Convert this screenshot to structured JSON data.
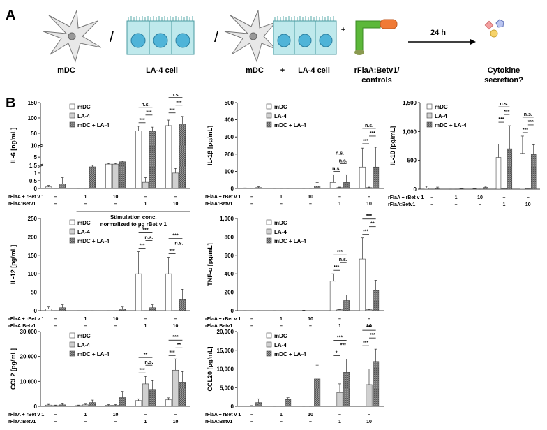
{
  "panel_a": {
    "label": "A",
    "cell_labels": [
      "mDC",
      "LA-4 cell",
      "mDC",
      "LA-4 cell"
    ],
    "slashes": [
      "/",
      "/"
    ],
    "plus": [
      "+",
      "+"
    ],
    "stimulus": [
      "rFlaA:Betv1/",
      "controls"
    ],
    "time": "24 h",
    "readout": [
      "Cytokine",
      "secretion?"
    ]
  },
  "panel_b": {
    "label": "B"
  },
  "chart_data": [
    {
      "type": "bar",
      "ylabel": "IL-6 [ng/mL]",
      "segments": [
        {
          "ylim": [
            0,
            1.5
          ],
          "yticks": [
            0,
            0.5,
            1,
            1.5
          ]
        },
        {
          "ylim": [
            1.5,
            10
          ],
          "yticks": [
            5,
            10
          ]
        },
        {
          "ylim": [
            10,
            150
          ],
          "yticks": [
            50,
            100,
            150
          ]
        }
      ],
      "series": [
        {
          "name": "mDC",
          "color": "#ffffff",
          "values": [
            0.1,
            0,
            2,
            58,
            75
          ],
          "errors": [
            0.1,
            0,
            0.3,
            15,
            18
          ]
        },
        {
          "name": "LA-4",
          "color": "#d0d0d0",
          "values": [
            0,
            0,
            2,
            0.4,
            1
          ],
          "errors": [
            0,
            0,
            0.3,
            0.3,
            0.3
          ]
        },
        {
          "name": "mDC + LA-4",
          "color": "#9a9a9a",
          "pattern": "crosshatch",
          "values": [
            0.3,
            1.4,
            3,
            58,
            80
          ],
          "errors": [
            0.4,
            0.1,
            0.3,
            12,
            25
          ]
        }
      ],
      "significance": [
        [],
        [],
        [],
        [
          "***",
          "***",
          "n.s."
        ],
        [
          "***",
          "***",
          "n.s."
        ]
      ],
      "rows": [
        {
          "name": "rFlaA + rBet v 1",
          "labels": [
            "–",
            "1",
            "10",
            "–",
            "–"
          ]
        },
        {
          "name": "rFlaA:Betv1",
          "labels": [
            "–",
            "–",
            "–",
            "1",
            "10"
          ]
        }
      ],
      "note": [
        "Stimulation conc.",
        "normalized to µg rBet v 1"
      ]
    },
    {
      "type": "bar",
      "ylabel": "IL-1β [pg/mL]",
      "ylim": [
        0,
        500
      ],
      "yticks": [
        0,
        100,
        200,
        300,
        400,
        500
      ],
      "series": [
        {
          "name": "mDC",
          "color": "#ffffff",
          "values": [
            0,
            0,
            0,
            35,
            125
          ],
          "errors": [
            3,
            0,
            0,
            45,
            110
          ]
        },
        {
          "name": "LA-4",
          "color": "#d0d0d0",
          "values": [
            0,
            0,
            0,
            5,
            5
          ],
          "errors": [
            0,
            0,
            0,
            3,
            3
          ]
        },
        {
          "name": "mDC + LA-4",
          "color": "#9a9a9a",
          "pattern": "crosshatch",
          "values": [
            5,
            0,
            15,
            35,
            125
          ],
          "errors": [
            5,
            0,
            20,
            45,
            115
          ]
        }
      ],
      "significance": [
        [],
        [],
        [],
        [
          "n.s.",
          "n.s.",
          "n.s."
        ],
        [
          "***",
          "***",
          "n.s."
        ]
      ],
      "rows": [
        {
          "name": "rFlaA + rBet v 1",
          "labels": [
            "–",
            "1",
            "10",
            "–",
            "–"
          ]
        },
        {
          "name": "rFlaA:Betv1",
          "labels": [
            "–",
            "–",
            "–",
            "1",
            "10"
          ]
        }
      ]
    },
    {
      "type": "bar",
      "ylabel": "IL-10 [pg/mL]",
      "ylim": [
        0,
        1500
      ],
      "yticks": [
        0,
        500,
        {
          "value": 1000,
          "label": "1,000"
        },
        {
          "value": 1500,
          "label": "1,500"
        }
      ],
      "series": [
        {
          "name": "mDC",
          "color": "#ffffff",
          "values": [
            20,
            0,
            5,
            550,
            620
          ],
          "errors": [
            30,
            0,
            5,
            230,
            300
          ]
        },
        {
          "name": "LA-4",
          "color": "#d0d0d0",
          "values": [
            0,
            0,
            0,
            10,
            10
          ],
          "errors": [
            0,
            0,
            0,
            5,
            5
          ]
        },
        {
          "name": "mDC + LA-4",
          "color": "#9a9a9a",
          "pattern": "crosshatch",
          "values": [
            15,
            5,
            30,
            700,
            600
          ],
          "errors": [
            20,
            5,
            20,
            400,
            170
          ]
        }
      ],
      "significance": [
        [],
        [],
        [],
        [
          "***",
          "***",
          "n.s."
        ],
        [
          "***",
          "***",
          "n.s."
        ]
      ],
      "rows": [
        {
          "name": "rFlaA + rBet v 1",
          "labels": [
            "–",
            "1",
            "10",
            "–",
            "–"
          ]
        },
        {
          "name": "rFlaA:Betv1",
          "labels": [
            "–",
            "–",
            "–",
            "1",
            "10"
          ]
        }
      ]
    },
    {
      "type": "bar",
      "ylabel": "IL-12 [pg/mL]",
      "ylim": [
        0,
        250
      ],
      "yticks": [
        0,
        50,
        100,
        150,
        200,
        250
      ],
      "series": [
        {
          "name": "mDC",
          "color": "#ffffff",
          "values": [
            5,
            0,
            0,
            100,
            100
          ],
          "errors": [
            5,
            0,
            0,
            60,
            45
          ]
        },
        {
          "name": "LA-4",
          "color": "#d0d0d0",
          "values": [
            0,
            0,
            0,
            0,
            0
          ],
          "errors": [
            0,
            0,
            0,
            0,
            0
          ]
        },
        {
          "name": "mDC + LA-4",
          "color": "#9a9a9a",
          "pattern": "crosshatch",
          "values": [
            8,
            0,
            5,
            8,
            30
          ],
          "errors": [
            8,
            0,
            5,
            8,
            28
          ]
        }
      ],
      "significance": [
        [],
        [],
        [],
        [
          "***",
          "n.s.",
          "***"
        ],
        [
          "***",
          "n.s.",
          "***"
        ]
      ],
      "rows": [
        {
          "name": "rFlaA + rBet v 1",
          "labels": [
            "–",
            "1",
            "10",
            "–",
            "–"
          ]
        },
        {
          "name": "rFlaA:Betv1",
          "labels": [
            "–",
            "–",
            "–",
            "1",
            "10"
          ]
        }
      ]
    },
    {
      "type": "bar",
      "ylabel": "TNF-α [pg/mL]",
      "ylim": [
        0,
        1000
      ],
      "yticks": [
        0,
        200,
        400,
        600,
        800,
        {
          "value": 1000,
          "label": "1,000"
        }
      ],
      "series": [
        {
          "name": "mDC",
          "color": "#ffffff",
          "values": [
            0,
            0,
            0,
            320,
            560
          ],
          "errors": [
            0,
            0,
            5,
            80,
            230
          ]
        },
        {
          "name": "LA-4",
          "color": "#d0d0d0",
          "values": [
            0,
            0,
            0,
            10,
            10
          ],
          "errors": [
            0,
            0,
            0,
            5,
            5
          ]
        },
        {
          "name": "mDC + LA-4",
          "color": "#9a9a9a",
          "pattern": "crosshatch",
          "values": [
            0,
            0,
            0,
            110,
            220
          ],
          "errors": [
            0,
            0,
            0,
            60,
            110
          ]
        }
      ],
      "significance": [
        [],
        [],
        [],
        [
          "***",
          "n.s.",
          "***"
        ],
        [
          "***",
          "**",
          "***"
        ]
      ],
      "rows": [
        {
          "name": "rFlaA + rBet v 1",
          "labels": [
            "–",
            "1",
            "10",
            "–",
            "–"
          ]
        },
        {
          "name": "rFlaA:Betv1",
          "labels": [
            "–",
            "–",
            "–",
            "1",
            "10"
          ]
        }
      ]
    },
    {
      "type": "bar",
      "ylabel": "CCL2 [pg/mL]",
      "ylim": [
        0,
        30000
      ],
      "yticks": [
        0,
        {
          "value": 10000,
          "label": "10,000"
        },
        {
          "value": 20000,
          "label": "20,000"
        },
        {
          "value": 30000,
          "label": "30,000"
        }
      ],
      "series": [
        {
          "name": "mDC",
          "color": "#ffffff",
          "values": [
            500,
            300,
            400,
            2300,
            2600
          ],
          "errors": [
            300,
            200,
            300,
            700,
            800
          ]
        },
        {
          "name": "LA-4",
          "color": "#d0d0d0",
          "values": [
            300,
            600,
            400,
            9000,
            14500
          ],
          "errors": [
            200,
            300,
            300,
            3000,
            4500
          ]
        },
        {
          "name": "mDC + LA-4",
          "color": "#9a9a9a",
          "pattern": "crosshatch",
          "values": [
            600,
            1500,
            3500,
            6800,
            9700
          ],
          "errors": [
            400,
            1000,
            2500,
            3500,
            4200
          ]
        }
      ],
      "significance": [
        [],
        [],
        [],
        [
          "***",
          "n.s.",
          "**"
        ],
        [
          "***",
          "**",
          "***"
        ]
      ],
      "rows": [
        {
          "name": "rFlaA + rBet v 1",
          "labels": [
            "–",
            "1",
            "10",
            "–",
            "–"
          ]
        },
        {
          "name": "rFlaA:Betv1",
          "labels": [
            "–",
            "–",
            "–",
            "1",
            "10"
          ]
        }
      ]
    },
    {
      "type": "bar",
      "ylabel": "CCL20 [pg/mL]",
      "ylim": [
        0,
        20000
      ],
      "yticks": [
        0,
        {
          "value": 5000,
          "label": "5,000"
        },
        {
          "value": 10000,
          "label": "10,000"
        },
        {
          "value": 15000,
          "label": "15,000"
        },
        {
          "value": 20000,
          "label": "20,000"
        }
      ],
      "series": [
        {
          "name": "mDC",
          "color": "#ffffff",
          "values": [
            50,
            0,
            0,
            50,
            50
          ],
          "errors": [
            50,
            0,
            0,
            50,
            50
          ]
        },
        {
          "name": "LA-4",
          "color": "#d0d0d0",
          "values": [
            100,
            0,
            0,
            3700,
            5800
          ],
          "errors": [
            100,
            0,
            0,
            2300,
            4200
          ]
        },
        {
          "name": "mDC + LA-4",
          "color": "#9a9a9a",
          "pattern": "crosshatch",
          "values": [
            1000,
            1800,
            7300,
            9100,
            12000
          ],
          "errors": [
            1000,
            500,
            3700,
            3500,
            3300
          ]
        }
      ],
      "significance": [
        [],
        [],
        [],
        [
          "*",
          "***",
          "***"
        ],
        [
          "***",
          "***",
          "***"
        ]
      ],
      "rows": [
        {
          "name": "rFlaA + rBet v 1",
          "labels": [
            "–",
            "1",
            "10",
            "–",
            "–"
          ]
        },
        {
          "name": "rFlaA:Betv1",
          "labels": [
            "–",
            "–",
            "–",
            "1",
            "10"
          ]
        }
      ]
    }
  ]
}
